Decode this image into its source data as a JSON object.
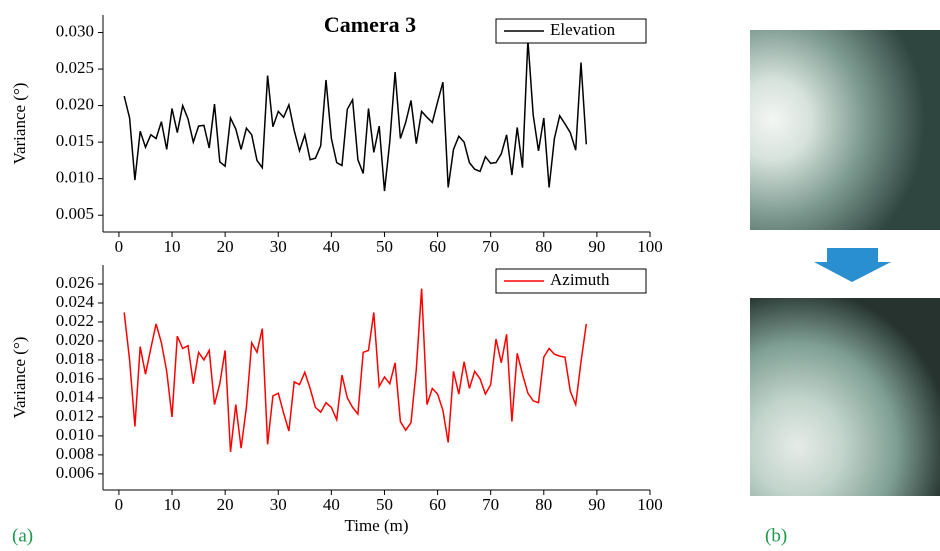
{
  "chart_data": [
    {
      "type": "line",
      "title": "Camera 3",
      "ylabel": "Variance (°)",
      "x": [
        1,
        2,
        3,
        4,
        5,
        6,
        7,
        8,
        9,
        10,
        11,
        12,
        13,
        14,
        15,
        16,
        17,
        18,
        19,
        20,
        21,
        22,
        23,
        24,
        25,
        26,
        27,
        28,
        29,
        30,
        31,
        32,
        33,
        34,
        35,
        36,
        37,
        38,
        39,
        40,
        41,
        42,
        43,
        44,
        45,
        46,
        47,
        48,
        49,
        50,
        51,
        52,
        53,
        54,
        55,
        56,
        57,
        58,
        59,
        60,
        61,
        62,
        63,
        64,
        65,
        66,
        67,
        68,
        69,
        70,
        71,
        72,
        73,
        74,
        75,
        76,
        77,
        78,
        79,
        80,
        81,
        82,
        83,
        84,
        85,
        86,
        87,
        88
      ],
      "series": [
        {
          "name": "Elevation",
          "color": "#000000",
          "values": [
            0.0213,
            0.0183,
            0.0098,
            0.0165,
            0.0143,
            0.016,
            0.0155,
            0.0178,
            0.014,
            0.0196,
            0.0163,
            0.02,
            0.0182,
            0.015,
            0.0172,
            0.0173,
            0.0142,
            0.0202,
            0.0123,
            0.0117,
            0.0183,
            0.0168,
            0.014,
            0.0169,
            0.016,
            0.0125,
            0.0115,
            0.0241,
            0.0171,
            0.0192,
            0.0184,
            0.0201,
            0.0166,
            0.0138,
            0.016,
            0.0126,
            0.0128,
            0.0145,
            0.0235,
            0.0155,
            0.0122,
            0.0118,
            0.0195,
            0.0208,
            0.0126,
            0.0107,
            0.0196,
            0.0136,
            0.0172,
            0.0083,
            0.0151,
            0.0246,
            0.0155,
            0.0177,
            0.0207,
            0.0148,
            0.0192,
            0.0184,
            0.0177,
            0.0205,
            0.0232,
            0.0088,
            0.014,
            0.0158,
            0.015,
            0.0122,
            0.0113,
            0.011,
            0.013,
            0.0121,
            0.0122,
            0.0134,
            0.016,
            0.0105,
            0.017,
            0.0115,
            0.029,
            0.0187,
            0.0138,
            0.0183,
            0.0088,
            0.0155,
            0.0186,
            0.0175,
            0.0163,
            0.0139,
            0.0259,
            0.0147
          ]
        }
      ],
      "xlim": [
        -3,
        100
      ],
      "xticks": [
        0,
        10,
        20,
        30,
        40,
        50,
        60,
        70,
        80,
        90,
        100
      ],
      "ylim": [
        0.0027,
        0.0324
      ],
      "yticks": [
        {
          "value": 0.005,
          "label": "0.005"
        },
        {
          "value": 0.01,
          "label": "0.010"
        },
        {
          "value": 0.015,
          "label": "0.015"
        },
        {
          "value": 0.02,
          "label": "0.020"
        },
        {
          "value": 0.025,
          "label": "0.025"
        },
        {
          "value": 0.03,
          "label": "0.030"
        }
      ],
      "legend": "upper right"
    },
    {
      "type": "line",
      "ylabel": "Variance (°)",
      "xlabel": "Time (m)",
      "x": [
        1,
        2,
        3,
        4,
        5,
        6,
        7,
        8,
        9,
        10,
        11,
        12,
        13,
        14,
        15,
        16,
        17,
        18,
        19,
        20,
        21,
        22,
        23,
        24,
        25,
        26,
        27,
        28,
        29,
        30,
        31,
        32,
        33,
        34,
        35,
        36,
        37,
        38,
        39,
        40,
        41,
        42,
        43,
        44,
        45,
        46,
        47,
        48,
        49,
        50,
        51,
        52,
        53,
        54,
        55,
        56,
        57,
        58,
        59,
        60,
        61,
        62,
        63,
        64,
        65,
        66,
        67,
        68,
        69,
        70,
        71,
        72,
        73,
        74,
        75,
        76,
        77,
        78,
        79,
        80,
        81,
        82,
        83,
        84,
        85,
        86,
        87,
        88
      ],
      "series": [
        {
          "name": "Azimuth",
          "color": "#ff0000",
          "values": [
            0.023,
            0.018,
            0.011,
            0.0194,
            0.0165,
            0.0192,
            0.0218,
            0.0198,
            0.0168,
            0.012,
            0.0205,
            0.0192,
            0.0195,
            0.0155,
            0.0188,
            0.018,
            0.019,
            0.0133,
            0.0155,
            0.019,
            0.0083,
            0.0133,
            0.0087,
            0.013,
            0.0198,
            0.0188,
            0.0213,
            0.0091,
            0.0142,
            0.0145,
            0.0124,
            0.0105,
            0.0157,
            0.0154,
            0.0167,
            0.015,
            0.013,
            0.0125,
            0.0135,
            0.013,
            0.0117,
            0.0164,
            0.014,
            0.013,
            0.0123,
            0.0188,
            0.019,
            0.023,
            0.0152,
            0.0162,
            0.0155,
            0.0177,
            0.0115,
            0.0106,
            0.0114,
            0.017,
            0.0255,
            0.0133,
            0.015,
            0.0144,
            0.0127,
            0.0093,
            0.0168,
            0.0144,
            0.0178,
            0.015,
            0.0168,
            0.016,
            0.0144,
            0.0154,
            0.0202,
            0.0177,
            0.0207,
            0.0115,
            0.0187,
            0.0165,
            0.0145,
            0.0137,
            0.0135,
            0.0183,
            0.0192,
            0.0186,
            0.0184,
            0.0183,
            0.0147,
            0.0133,
            0.0178,
            0.0218
          ]
        }
      ],
      "xlim": [
        -3,
        100
      ],
      "xticks": [
        0,
        10,
        20,
        30,
        40,
        50,
        60,
        70,
        80,
        90,
        100
      ],
      "ylim": [
        0.0043,
        0.028
      ],
      "yticks": [
        0.006,
        0.008,
        {
          "value": 0.01,
          "label": "0.010"
        },
        0.012,
        0.014,
        0.016,
        0.018,
        {
          "value": 0.02,
          "label": "0.020"
        },
        0.022,
        0.024,
        0.026
      ],
      "legend": "upper right"
    }
  ],
  "panel_labels": [
    "(a)",
    "(b)"
  ]
}
